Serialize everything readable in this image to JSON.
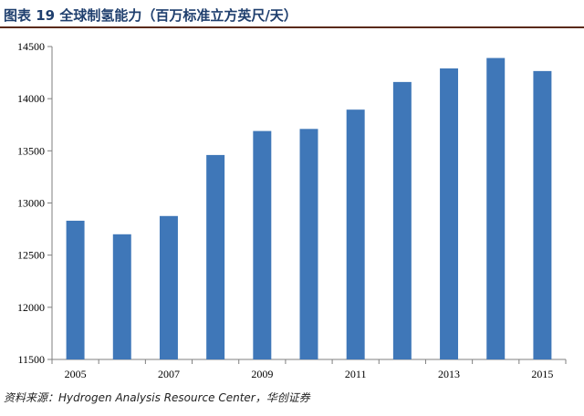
{
  "header": {
    "title": "图表 19   全球制氢能力（百万标准立方英尺/天）"
  },
  "footer": {
    "source": "资料来源：Hydrogen Analysis Resource Center，华创证券"
  },
  "colors": {
    "bar": "#3f77b8",
    "axis": "#7f7f7f",
    "title": "#1f3f6e",
    "rule": "#5a2a18"
  },
  "chart_data": {
    "type": "bar",
    "title": "全球制氢能力（百万标准立方英尺/天）",
    "xlabel": "",
    "ylabel": "",
    "categories": [
      "2005",
      "2006",
      "2007",
      "2008",
      "2009",
      "2010",
      "2011",
      "2012",
      "2013",
      "2014",
      "2015"
    ],
    "x_tick_labels": [
      "2005",
      "",
      "2007",
      "",
      "2009",
      "",
      "2011",
      "",
      "2013",
      "",
      "2015"
    ],
    "values": [
      12830,
      12700,
      12875,
      13460,
      13690,
      13710,
      13895,
      14160,
      14290,
      14390,
      14265
    ],
    "ylim": [
      11500,
      14500
    ],
    "yticks": [
      11500,
      12000,
      12500,
      13000,
      13500,
      14000,
      14500
    ],
    "grid": false,
    "legend": "none"
  }
}
